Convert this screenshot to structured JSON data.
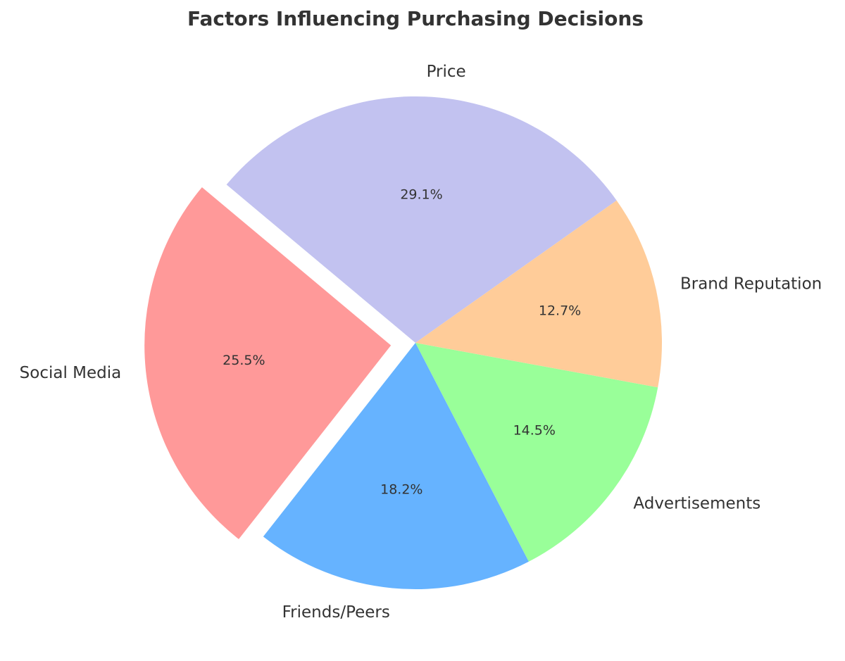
{
  "chart_data": {
    "type": "pie",
    "title": "Factors Influencing Purchasing Decisions",
    "categories": [
      "Price",
      "Social Media",
      "Friends/Peers",
      "Advertisements",
      "Brand Reputation"
    ],
    "values": [
      29.1,
      25.5,
      18.2,
      14.5,
      12.7
    ],
    "value_labels": [
      "29.1%",
      "25.5%",
      "18.2%",
      "14.5%",
      "12.7%"
    ],
    "colors": [
      "#c2c2f0",
      "#ff9999",
      "#66b3ff",
      "#99ff99",
      "#ffcc99"
    ]
  }
}
